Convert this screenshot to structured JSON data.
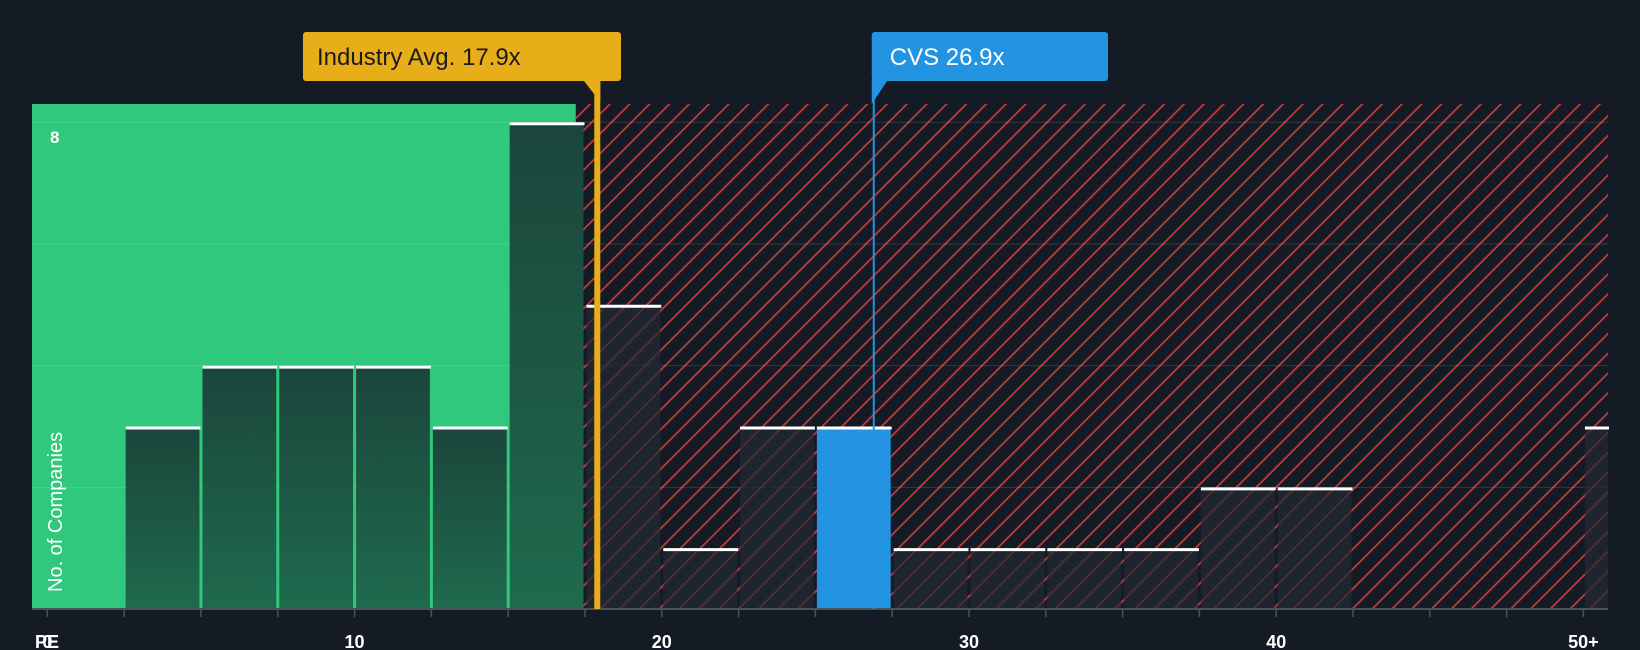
{
  "chart_data": {
    "type": "bar",
    "title": "",
    "xlabel": "PE",
    "ylabel": "No. of Companies",
    "xlim": [
      -0.5,
      50.8
    ],
    "ylim": [
      0,
      8.3
    ],
    "y_tick_label": "8",
    "x_ticks": [
      {
        "value": 0,
        "label": "0"
      },
      {
        "value": 10,
        "label": "10"
      },
      {
        "value": 20,
        "label": "20"
      },
      {
        "value": 30,
        "label": "30"
      },
      {
        "value": 40,
        "label": "40"
      },
      {
        "value": 50,
        "label": "50+"
      }
    ],
    "bins": [
      {
        "start": 2.5,
        "end": 5.0,
        "count": 3
      },
      {
        "start": 5.0,
        "end": 7.5,
        "count": 4
      },
      {
        "start": 7.5,
        "end": 10.0,
        "count": 4
      },
      {
        "start": 10.0,
        "end": 12.5,
        "count": 4
      },
      {
        "start": 12.5,
        "end": 15.0,
        "count": 3
      },
      {
        "start": 15.0,
        "end": 17.5,
        "count": 8
      },
      {
        "start": 17.5,
        "end": 20.0,
        "count": 5
      },
      {
        "start": 20.0,
        "end": 22.5,
        "count": 1
      },
      {
        "start": 22.5,
        "end": 25.0,
        "count": 3
      },
      {
        "start": 25.0,
        "end": 27.5,
        "count": 3,
        "highlight": true
      },
      {
        "start": 27.5,
        "end": 30.0,
        "count": 1
      },
      {
        "start": 30.0,
        "end": 32.5,
        "count": 1
      },
      {
        "start": 32.5,
        "end": 35.0,
        "count": 1
      },
      {
        "start": 35.0,
        "end": 37.5,
        "count": 1
      },
      {
        "start": 37.5,
        "end": 40.0,
        "count": 2
      },
      {
        "start": 40.0,
        "end": 42.5,
        "count": 2
      },
      {
        "start": 50.0,
        "end": 52.5,
        "count": 3
      }
    ],
    "fair_zone_end": 17.2,
    "industry_avg": {
      "value": 17.9,
      "label": "Industry Avg. 17.9x"
    },
    "company": {
      "value": 26.9,
      "label": "CVS 26.9x"
    },
    "colors": {
      "background": "#151b24",
      "fair_zone": "#2fc87c",
      "bar_green": "#1c4a3c",
      "bar_dark": "#232a33",
      "bar_highlight": "#2394e2",
      "hatch": "#c03b3e",
      "industry": "#e8ae1a",
      "company": "#2394e2",
      "text": "#ffffff"
    }
  }
}
